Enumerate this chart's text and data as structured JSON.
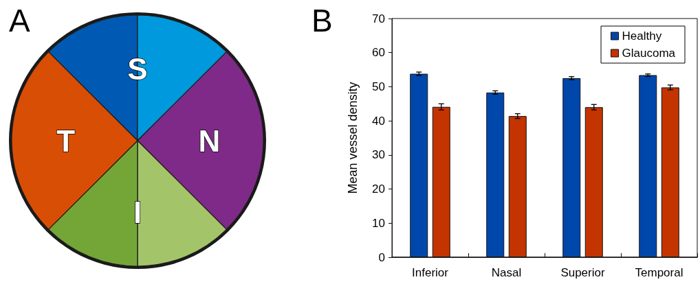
{
  "chart_data": [
    {
      "type": "pie",
      "title": "A",
      "categories": [
        null,
        "S",
        "N",
        null,
        "I",
        "T"
      ],
      "values": [
        12.5,
        12.5,
        25,
        12.5,
        12.5,
        25
      ],
      "colors": [
        "#005ab3",
        "#0099dd",
        "#7f2a88",
        "#a4c46a",
        "#74a637",
        "#d84e05"
      ]
    },
    {
      "type": "bar",
      "title": "B",
      "ylabel": "Mean vessel density",
      "categories": [
        "Inferior",
        "Nasal",
        "Superior",
        "Temporal"
      ],
      "series": [
        {
          "name": "Healthy",
          "color": "#0047ab",
          "values": [
            53.8,
            48.3,
            52.5,
            53.4
          ],
          "errors": [
            0.5,
            0.5,
            0.45,
            0.35
          ]
        },
        {
          "name": "Glaucoma",
          "color": "#c33400",
          "values": [
            44.1,
            41.4,
            44.0,
            49.8
          ],
          "errors": [
            0.9,
            0.7,
            0.8,
            0.7
          ]
        }
      ],
      "ylim": [
        0,
        70
      ],
      "yticks": [
        0,
        10,
        20,
        30,
        40,
        50,
        60,
        70
      ],
      "legend": "top right"
    }
  ]
}
